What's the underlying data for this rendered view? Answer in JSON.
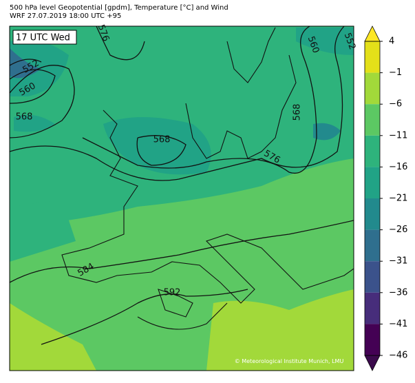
{
  "header": {
    "title": "500 hPa level Geopotential [gpdm], Temperature [°C] and Wind",
    "subtitle": "WRF 27.07.2019 18:00 UTC +95"
  },
  "map": {
    "time_label": "17 UTC Wed",
    "contour_labels": [
      "576",
      "552",
      "560",
      "568",
      "568",
      "576",
      "568",
      "560",
      "552",
      "584",
      "592"
    ],
    "copyright": "© Meteorological Institute Munich, LMU"
  },
  "colorbar": {
    "ticks": [
      4,
      {
        "value": -1,
        "label": "−1"
      },
      {
        "value": -6,
        "label": "−6"
      },
      {
        "value": -11,
        "label": "−11"
      },
      {
        "value": -16,
        "label": "−16"
      },
      {
        "value": -21,
        "label": "−21"
      },
      {
        "value": -26,
        "label": "−26"
      },
      {
        "value": -31,
        "label": "−31"
      },
      {
        "value": -36,
        "label": "−36"
      },
      {
        "value": -41,
        "label": "−41"
      },
      {
        "value": -46,
        "label": "−46"
      }
    ],
    "colors": [
      "#e4e019",
      "#a2d93a",
      "#5cc863",
      "#2eb37c",
      "#21a386",
      "#228a8d",
      "#2f6f8e",
      "#3b528b",
      "#472d7b",
      "#440154"
    ],
    "over_color": "#fde725",
    "under_color": "#3b0a4c"
  }
}
